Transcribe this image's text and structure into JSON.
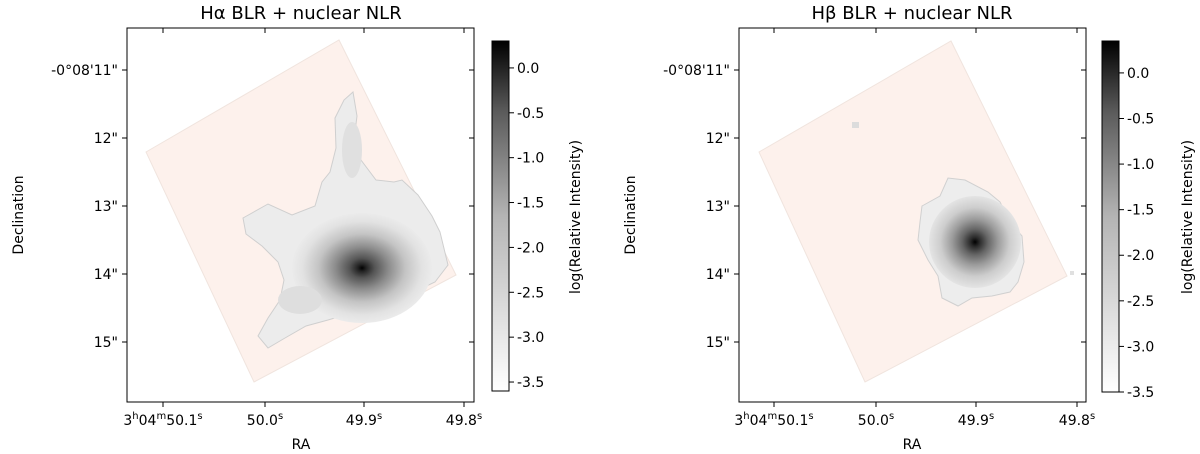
{
  "panels": [
    {
      "title": "Hα BLR + nuclear NLR",
      "xlabel": "RA",
      "ylabel": "Declination",
      "colorbar_label": "log(Relative Intensity)",
      "yticks": [
        "-0°08'11\"",
        "12\"",
        "13\"",
        "14\"",
        "15\""
      ],
      "xticks": [
        {
          "h": "3",
          "m": "04",
          "s": "50.1",
          "suffix": "s"
        },
        {
          "s": "50.0",
          "suffix": "s"
        },
        {
          "s": "49.9",
          "suffix": "s"
        },
        {
          "s": "49.8",
          "suffix": "s"
        }
      ],
      "cbar_ticks": [
        "0.0",
        "-0.5",
        "-1.0",
        "-1.5",
        "-2.0",
        "-2.5",
        "-3.0",
        "-3.5"
      ]
    },
    {
      "title": "Hβ BLR + nuclear NLR",
      "xlabel": "RA",
      "ylabel": "Declination",
      "colorbar_label": "log(Relative Intensity)",
      "yticks": [
        "-0°08'11\"",
        "12\"",
        "13\"",
        "14\"",
        "15\""
      ],
      "xticks": [
        {
          "h": "3",
          "m": "04",
          "s": "50.1",
          "suffix": "s"
        },
        {
          "s": "50.0",
          "suffix": "s"
        },
        {
          "s": "49.9",
          "suffix": "s"
        },
        {
          "s": "49.8",
          "suffix": "s"
        }
      ],
      "cbar_ticks": [
        "0.0",
        "-0.5",
        "-1.0",
        "-1.5",
        "-2.0",
        "-2.5",
        "-3.0",
        "-3.5"
      ]
    }
  ],
  "chart_data": [
    {
      "type": "heatmap",
      "title": "Hα BLR + nuclear NLR",
      "xlabel": "RA",
      "ylabel": "Declination",
      "x_ticks": [
        "3h04m50.1s",
        "50.0s",
        "49.9s",
        "49.8s"
      ],
      "y_ticks": [
        "-0°08'11\"",
        "12\"",
        "13\"",
        "14\"",
        "15\""
      ],
      "colorbar": {
        "label": "log(Relative Intensity)",
        "range": [
          -3.6,
          0.3
        ],
        "colormap": "Greys"
      },
      "peak": {
        "ra_s": 49.9,
        "dec_arcsec": 13.55,
        "log_intensity": 0.3
      },
      "footprint_color": "#fdf1ec",
      "grid": false
    },
    {
      "type": "heatmap",
      "title": "Hβ BLR + nuclear NLR",
      "xlabel": "RA",
      "ylabel": "Declination",
      "x_ticks": [
        "3h04m50.1s",
        "50.0s",
        "49.9s",
        "49.8s"
      ],
      "y_ticks": [
        "-0°08'11\"",
        "12\"",
        "13\"",
        "14\"",
        "15\""
      ],
      "colorbar": {
        "label": "log(Relative Intensity)",
        "range": [
          -3.5,
          0.35
        ],
        "colormap": "Greys"
      },
      "peak": {
        "ra_s": 49.9,
        "dec_arcsec": 13.55,
        "log_intensity": 0.35
      },
      "footprint_color": "#fdf1ec",
      "grid": false
    }
  ]
}
